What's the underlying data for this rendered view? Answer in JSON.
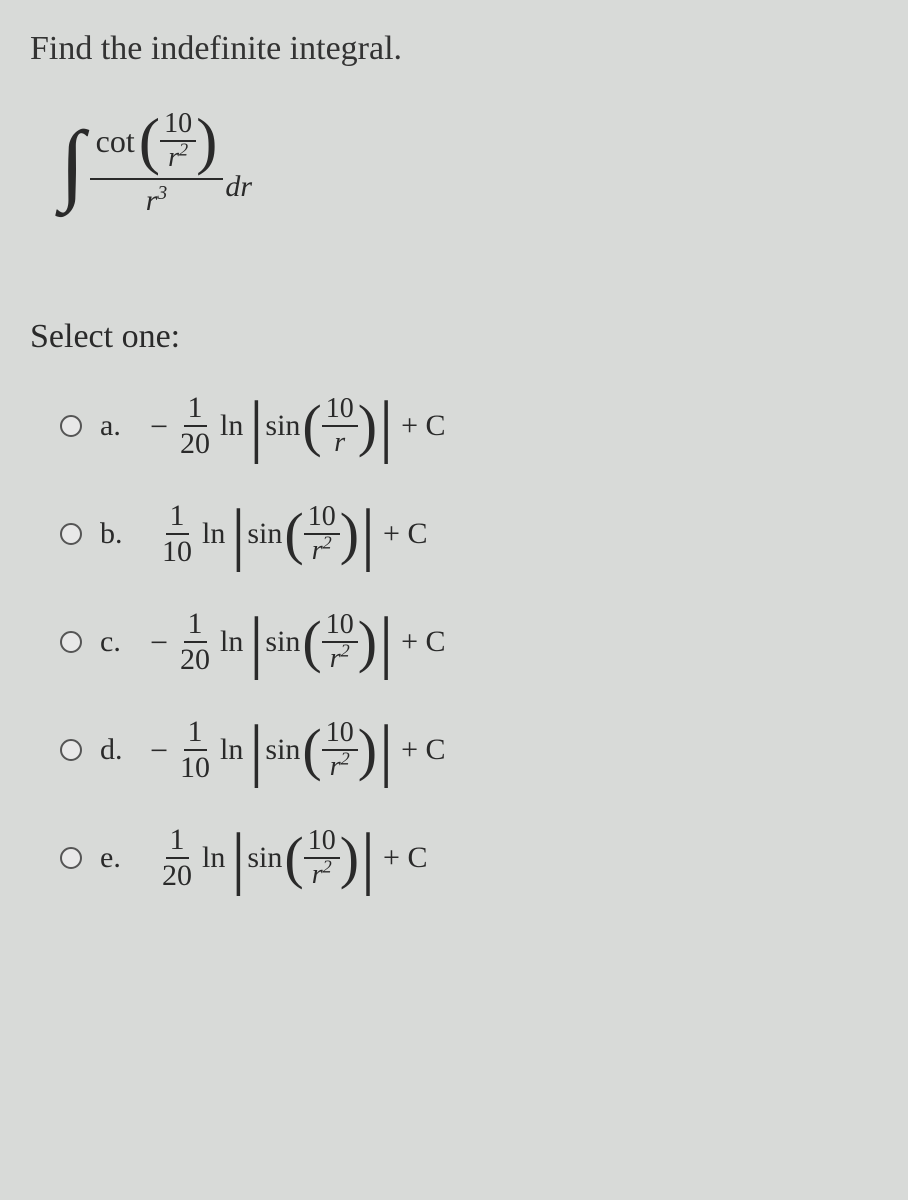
{
  "question": {
    "prompt": "Find the indefinite integral.",
    "integral": {
      "cot_label": "cot",
      "inner_num": "10",
      "inner_den_var": "r",
      "inner_den_exp": "2",
      "outer_den_var": "r",
      "outer_den_exp": "3",
      "dr": "dr"
    },
    "select_label": "Select one:"
  },
  "options": [
    {
      "label": "a.",
      "sign": "−",
      "coef_num": "1",
      "coef_den": "20",
      "ln": "ln",
      "sin": "sin",
      "arg_num": "10",
      "arg_den_var": "r",
      "arg_den_exp": "",
      "plus_c": "+ C"
    },
    {
      "label": "b.",
      "sign": "",
      "coef_num": "1",
      "coef_den": "10",
      "ln": "ln",
      "sin": "sin",
      "arg_num": "10",
      "arg_den_var": "r",
      "arg_den_exp": "2",
      "plus_c": "+ C"
    },
    {
      "label": "c.",
      "sign": "−",
      "coef_num": "1",
      "coef_den": "20",
      "ln": "ln",
      "sin": "sin",
      "arg_num": "10",
      "arg_den_var": "r",
      "arg_den_exp": "2",
      "plus_c": "+ C"
    },
    {
      "label": "d.",
      "sign": "−",
      "coef_num": "1",
      "coef_den": "10",
      "ln": "ln",
      "sin": "sin",
      "arg_num": "10",
      "arg_den_var": "r",
      "arg_den_exp": "2",
      "plus_c": "+ C"
    },
    {
      "label": "e.",
      "sign": "",
      "coef_num": "1",
      "coef_den": "20",
      "ln": "ln",
      "sin": "sin",
      "arg_num": "10",
      "arg_den_var": "r",
      "arg_den_exp": "2",
      "plus_c": "+ C"
    }
  ],
  "styling": {
    "background_color": "#d8dad8",
    "text_color": "#2a2a2a",
    "question_fontsize": 34,
    "option_fontsize": 30,
    "font_family": "Georgia, Times New Roman, serif"
  }
}
